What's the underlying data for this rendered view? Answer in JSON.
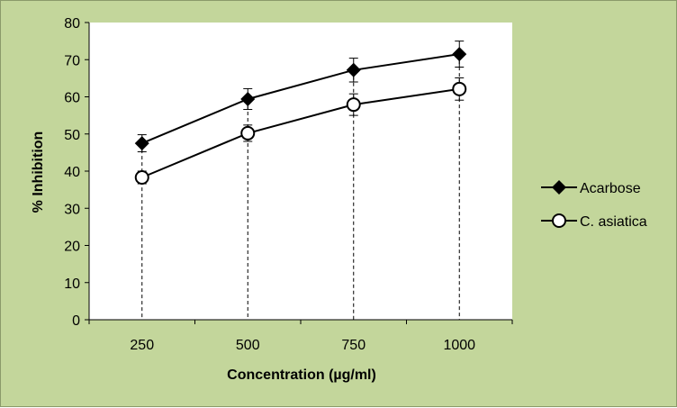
{
  "chart_data": {
    "type": "line",
    "title": "",
    "xlabel": "Concentration (µg/ml)",
    "ylabel": "% Inhibition",
    "categories": [
      "250",
      "500",
      "750",
      "1000"
    ],
    "ylim": [
      0,
      80
    ],
    "yticks": [
      "0",
      "10",
      "20",
      "30",
      "40",
      "50",
      "60",
      "70",
      "80"
    ],
    "grid": false,
    "legend_position": "right",
    "drop_lines": true,
    "series": [
      {
        "name": "Acarbose",
        "marker": "filled-diamond",
        "values": [
          47.5,
          59.4,
          67.2,
          71.5
        ],
        "errors": [
          2.3,
          2.8,
          3.2,
          3.5
        ]
      },
      {
        "name": "C. asiatica",
        "marker": "open-circle",
        "values": [
          38.3,
          50.2,
          57.9,
          62.1
        ],
        "errors": [
          1.7,
          2.2,
          2.9,
          3.0
        ]
      }
    ]
  },
  "colors": {
    "background": "#c3d69b",
    "plot": "#ffffff",
    "line": "#000000"
  }
}
